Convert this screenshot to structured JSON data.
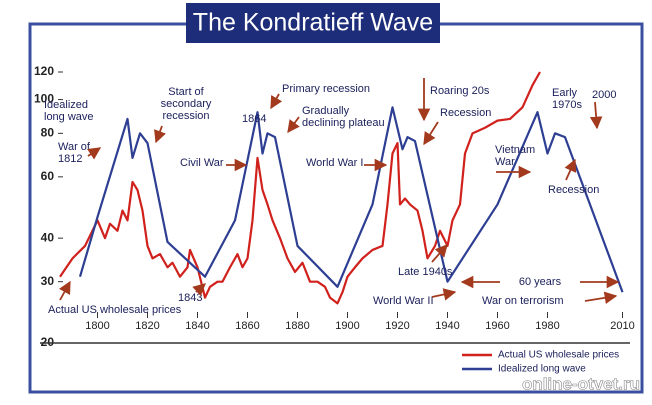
{
  "chart_data": {
    "type": "line",
    "title": "The Kondratieff Wave",
    "log_scale_y": true,
    "xlim": [
      1777,
      2013
    ],
    "ylim": [
      20,
      120
    ],
    "xticks": [
      1800,
      1820,
      1840,
      1860,
      1880,
      1900,
      1920,
      1940,
      1960,
      1980,
      2010
    ],
    "yticks": [
      20,
      30,
      40,
      60,
      80,
      100,
      120
    ],
    "legend_position": "bottom-right",
    "series": [
      {
        "name": "Actual US wholesale prices",
        "color": "#d0211c",
        "x": [
          1785,
          1790,
          1795,
          1800,
          1803,
          1805,
          1808,
          1810,
          1812,
          1814,
          1816,
          1818,
          1820,
          1822,
          1825,
          1828,
          1830,
          1833,
          1836,
          1837,
          1840,
          1843,
          1845,
          1848,
          1850,
          1853,
          1856,
          1858,
          1860,
          1862,
          1864,
          1866,
          1868,
          1870,
          1873,
          1876,
          1879,
          1882,
          1885,
          1888,
          1891,
          1893,
          1896,
          1898,
          1900,
          1903,
          1906,
          1910,
          1914,
          1916,
          1918,
          1920,
          1921,
          1923,
          1925,
          1928,
          1930,
          1932,
          1935,
          1937,
          1940,
          1942,
          1945,
          1947,
          1950,
          1955,
          1960,
          1965,
          1970,
          1974,
          1977
        ],
        "values": [
          31,
          35,
          38,
          45,
          40,
          44,
          42,
          48,
          45,
          58,
          55,
          48,
          38,
          35,
          36,
          33,
          34,
          31,
          33,
          37,
          33,
          27,
          29,
          30,
          30,
          33,
          36,
          33,
          35,
          45,
          68,
          55,
          50,
          45,
          40,
          35,
          32,
          34,
          30,
          30,
          29,
          27,
          26,
          28,
          31,
          33,
          35,
          37,
          38,
          50,
          70,
          75,
          50,
          52,
          50,
          48,
          42,
          35,
          38,
          42,
          38,
          45,
          50,
          70,
          80,
          83,
          87,
          88,
          95,
          110,
          120
        ]
      },
      {
        "name": "Idealized long wave",
        "color": "#2e3f93",
        "x": [
          1793,
          1800,
          1812,
          1814,
          1817,
          1820,
          1828,
          1843,
          1855,
          1864,
          1866,
          1868,
          1871,
          1880,
          1896,
          1910,
          1918,
          1922,
          1924,
          1927,
          1940,
          1960,
          1976,
          1980,
          1983,
          1987,
          2010
        ],
        "values": [
          31,
          46,
          88,
          68,
          80,
          75,
          39,
          31,
          45,
          92,
          70,
          80,
          78,
          38,
          29,
          50,
          95,
          72,
          78,
          76,
          30,
          50,
          92,
          70,
          80,
          78,
          28
        ]
      }
    ],
    "annotations": [
      {
        "lines": [
          "Idealized",
          "long wave"
        ]
      },
      {
        "lines": [
          "War of",
          "1812"
        ]
      },
      {
        "lines": [
          "Start of",
          "secondary",
          "recession"
        ]
      },
      {
        "lines": [
          "1864"
        ]
      },
      {
        "lines": [
          "Primary recession"
        ]
      },
      {
        "lines": [
          "Gradually",
          "declining plateau"
        ]
      },
      {
        "lines": [
          "Civil War"
        ]
      },
      {
        "lines": [
          "World War I"
        ]
      },
      {
        "lines": [
          "Roaring 20s"
        ]
      },
      {
        "lines": [
          "Recession"
        ]
      },
      {
        "lines": [
          "Early",
          "1970s"
        ]
      },
      {
        "lines": [
          "2000"
        ]
      },
      {
        "lines": [
          "Vietnam",
          "War"
        ]
      },
      {
        "lines": [
          "Recession"
        ]
      },
      {
        "lines": [
          "Late 1940s"
        ]
      },
      {
        "lines": [
          "60 years"
        ]
      },
      {
        "lines": [
          "World War II"
        ]
      },
      {
        "lines": [
          "War on terrorism"
        ]
      },
      {
        "lines": [
          "1843"
        ]
      },
      {
        "lines": [
          "Actual US wholesale prices"
        ]
      }
    ],
    "watermark": "online-otvet.ru"
  }
}
